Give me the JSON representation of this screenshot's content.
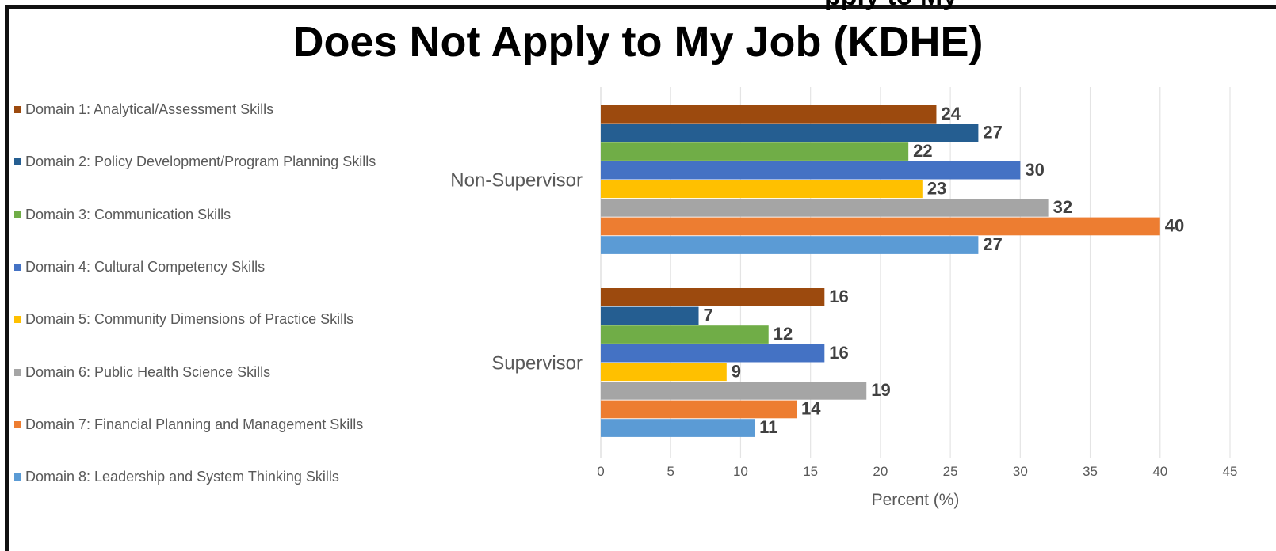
{
  "top_crop_text": "pply to My",
  "chart_data": {
    "type": "bar",
    "orientation": "horizontal",
    "title": "Does Not Apply to My Job (KDHE)",
    "xlabel": "Percent (%)",
    "ylabel": "",
    "xlim": [
      0,
      45
    ],
    "xticks": [
      0,
      5,
      10,
      15,
      20,
      25,
      30,
      35,
      40,
      45
    ],
    "grid": "vertical",
    "legend_placement": "left",
    "categories": [
      "Non-Supervisor",
      "Supervisor"
    ],
    "series": [
      {
        "name": "Domain 1: Analytical/Assessment Skills",
        "color": "#9C4A0E",
        "values": [
          24,
          16
        ]
      },
      {
        "name": "Domain 2: Policy Development/Program Planning Skills",
        "color": "#255E91",
        "values": [
          27,
          7
        ]
      },
      {
        "name": "Domain 3: Communication Skills",
        "color": "#70AD47",
        "values": [
          22,
          12
        ]
      },
      {
        "name": "Domain 4: Cultural Competency Skills",
        "color": "#4472C4",
        "values": [
          30,
          16
        ]
      },
      {
        "name": "Domain 5: Community Dimensions of Practice Skills",
        "color": "#FFC000",
        "values": [
          23,
          9
        ]
      },
      {
        "name": "Domain 6: Public Health Science Skills",
        "color": "#A5A5A5",
        "values": [
          32,
          19
        ]
      },
      {
        "name": "Domain 7: Financial Planning and Management Skills",
        "color": "#ED7D31",
        "values": [
          40,
          14
        ]
      },
      {
        "name": "Domain 8: Leadership and System Thinking Skills",
        "color": "#5B9BD5",
        "values": [
          27,
          11
        ]
      }
    ]
  }
}
